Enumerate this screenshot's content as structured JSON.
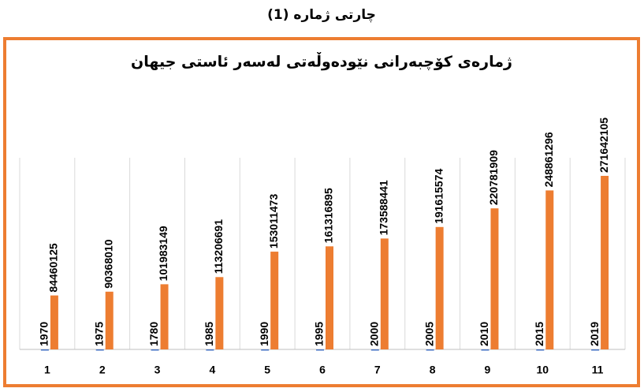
{
  "chart_data": {
    "type": "bar",
    "caption": "چارتی ژمارە (1)",
    "title": "ژمارەی کۆچبەرانی نێودەوڵەتی لەسەر ئاستی جیهان",
    "categories": [
      "1",
      "2",
      "3",
      "4",
      "5",
      "6",
      "7",
      "8",
      "9",
      "10",
      "11"
    ],
    "series": [
      {
        "color": "#4472c4",
        "values": [
          1970,
          1975,
          1780,
          1985,
          1990,
          1995,
          2000,
          2005,
          2010,
          2015,
          2019
        ]
      },
      {
        "color": "#ed7d31",
        "values": [
          84460125,
          90368010,
          101983149,
          113206691,
          153011473,
          161316895,
          173588441,
          191615574,
          220781909,
          248861296,
          271642105
        ]
      }
    ],
    "ylim": [
      0,
      300000000
    ],
    "data_labels": true,
    "border_color": "#ed7d31"
  }
}
